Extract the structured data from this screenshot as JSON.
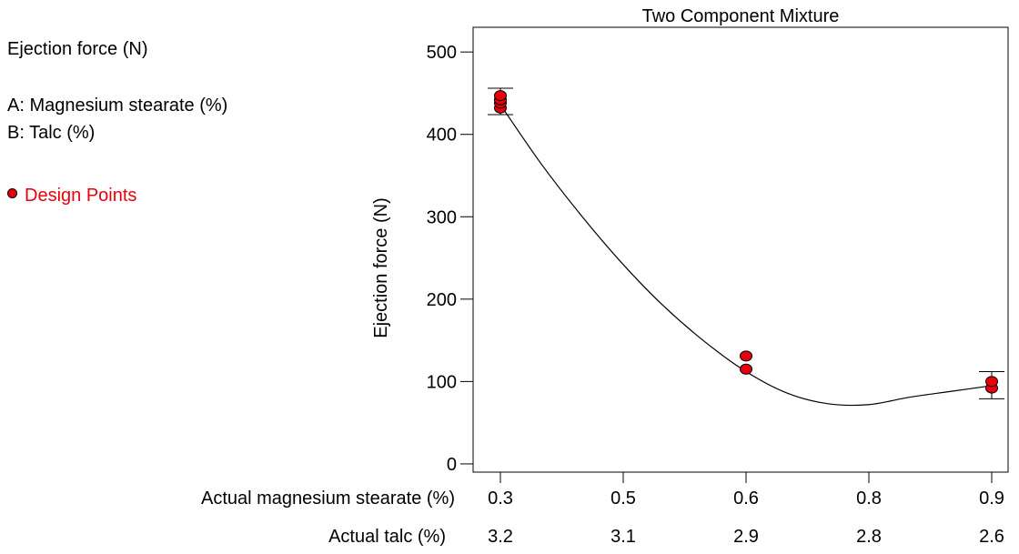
{
  "sidebar": {
    "response": "Ejection force (N)",
    "factor_a": "A: Magnesium stearate (%)",
    "factor_b": "B: Talc (%)",
    "legend": "Design Points"
  },
  "colors": {
    "points": "#e8000b",
    "line": "#000000"
  },
  "chart_data": {
    "type": "line",
    "title": "Two Component Mixture",
    "ylabel": "Ejection force (N)",
    "xlabel": "Actual magnesium stearate (%)",
    "x2label": "Actual talc (%)",
    "ylim": [
      -10,
      530
    ],
    "xlim": [
      0.3,
      0.9
    ],
    "yticks": [
      0,
      100,
      200,
      300,
      400,
      500
    ],
    "xticks": [
      {
        "x": 0.3,
        "label": "0.3",
        "label2": "3.2"
      },
      {
        "x": 0.45,
        "label": "0.5",
        "label2": "3.1"
      },
      {
        "x": 0.6,
        "label": "0.6",
        "label2": "2.9"
      },
      {
        "x": 0.75,
        "label": "0.8",
        "label2": "2.8"
      },
      {
        "x": 0.9,
        "label": "0.9",
        "label2": "2.6"
      }
    ],
    "fit_curve": {
      "x": [
        0.3,
        0.35,
        0.4,
        0.45,
        0.5,
        0.55,
        0.6,
        0.65,
        0.7,
        0.75,
        0.8,
        0.85,
        0.9
      ],
      "y": [
        436,
        364,
        300,
        242,
        191,
        148,
        112,
        86,
        73,
        72,
        81,
        88,
        95
      ]
    },
    "design_points": [
      {
        "x": 0.3,
        "y": 432
      },
      {
        "x": 0.3,
        "y": 438
      },
      {
        "x": 0.3,
        "y": 442
      },
      {
        "x": 0.3,
        "y": 447
      },
      {
        "x": 0.6,
        "y": 115
      },
      {
        "x": 0.6,
        "y": 131
      },
      {
        "x": 0.9,
        "y": 92
      },
      {
        "x": 0.9,
        "y": 100
      }
    ],
    "error_bars": [
      {
        "x": 0.3,
        "low": 424,
        "high": 456
      },
      {
        "x": 0.9,
        "low": 79,
        "high": 112
      }
    ]
  }
}
